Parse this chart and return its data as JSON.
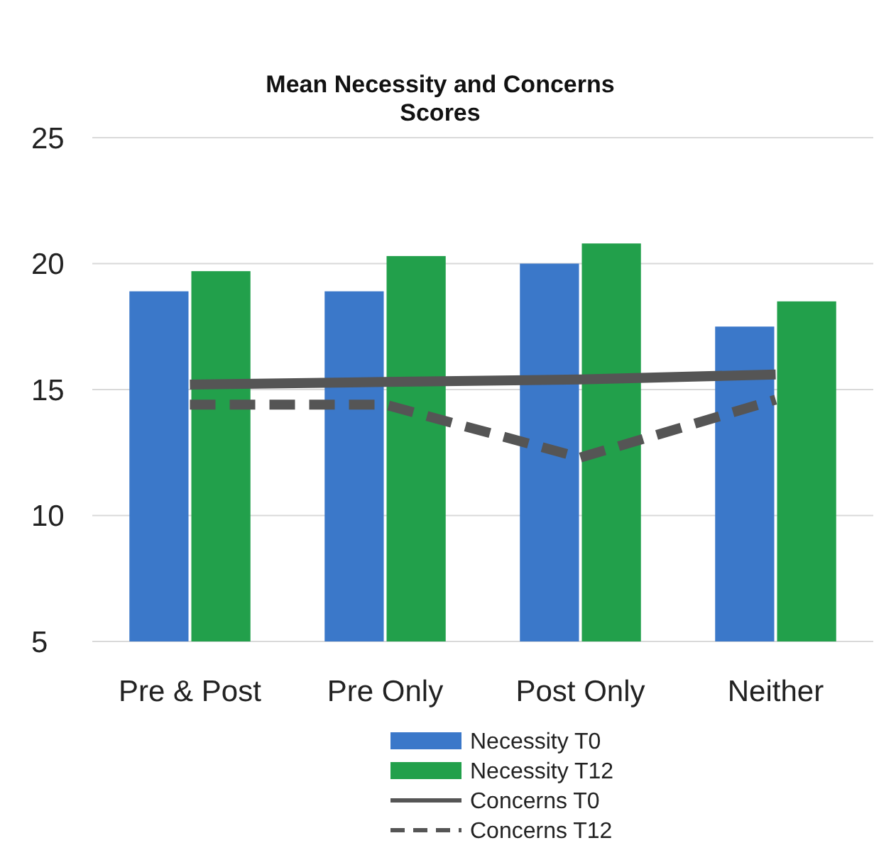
{
  "chart_data": {
    "type": "bar",
    "title": "Mean Necessity and Concerns Scores",
    "categories": [
      "Pre & Post",
      "Pre Only",
      "Post Only",
      "Neither"
    ],
    "series": [
      {
        "name": "Necessity T0",
        "color": "#3b78c9",
        "values": [
          18.9,
          18.9,
          20.0,
          17.5
        ]
      },
      {
        "name": "Necessity T12",
        "color": "#22a04b",
        "values": [
          19.7,
          20.3,
          20.8,
          18.5
        ]
      },
      {
        "name": "Concerns T0",
        "type": "line",
        "color": "#555555",
        "line_style": "solid",
        "values": [
          15.2,
          15.3,
          15.4,
          15.6
        ]
      },
      {
        "name": "Concerns T12",
        "type": "line",
        "color": "#555555",
        "line_style": "dashed",
        "values": [
          14.4,
          14.4,
          12.3,
          14.6
        ]
      }
    ],
    "ylim": [
      5,
      25
    ],
    "yticks": [
      5,
      10,
      15,
      20,
      25
    ],
    "grid": "y",
    "legend": "bottom"
  }
}
